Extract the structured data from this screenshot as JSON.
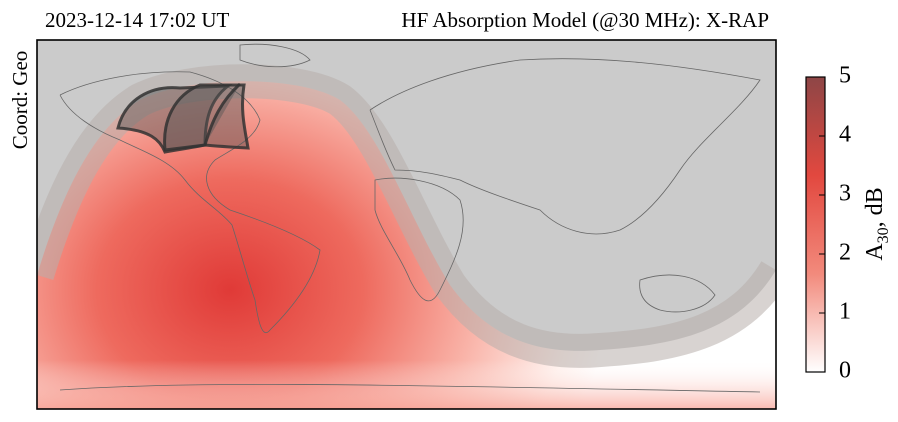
{
  "header": {
    "timestamp": "2023-12-14 17:02 UT",
    "title": "HF Absorption Model (@30 MHz): X-RAP"
  },
  "map": {
    "coord_label": "Coord: Geo"
  },
  "colorbar": {
    "label": "A",
    "label_sub": "30",
    "label_suffix": ", dB",
    "lim": [
      0,
      5
    ],
    "ticks": [
      0,
      1,
      2,
      3,
      4,
      5
    ],
    "colors": [
      "#ffffff",
      "#f28a7c",
      "#e2483f",
      "#8e4646"
    ]
  }
}
